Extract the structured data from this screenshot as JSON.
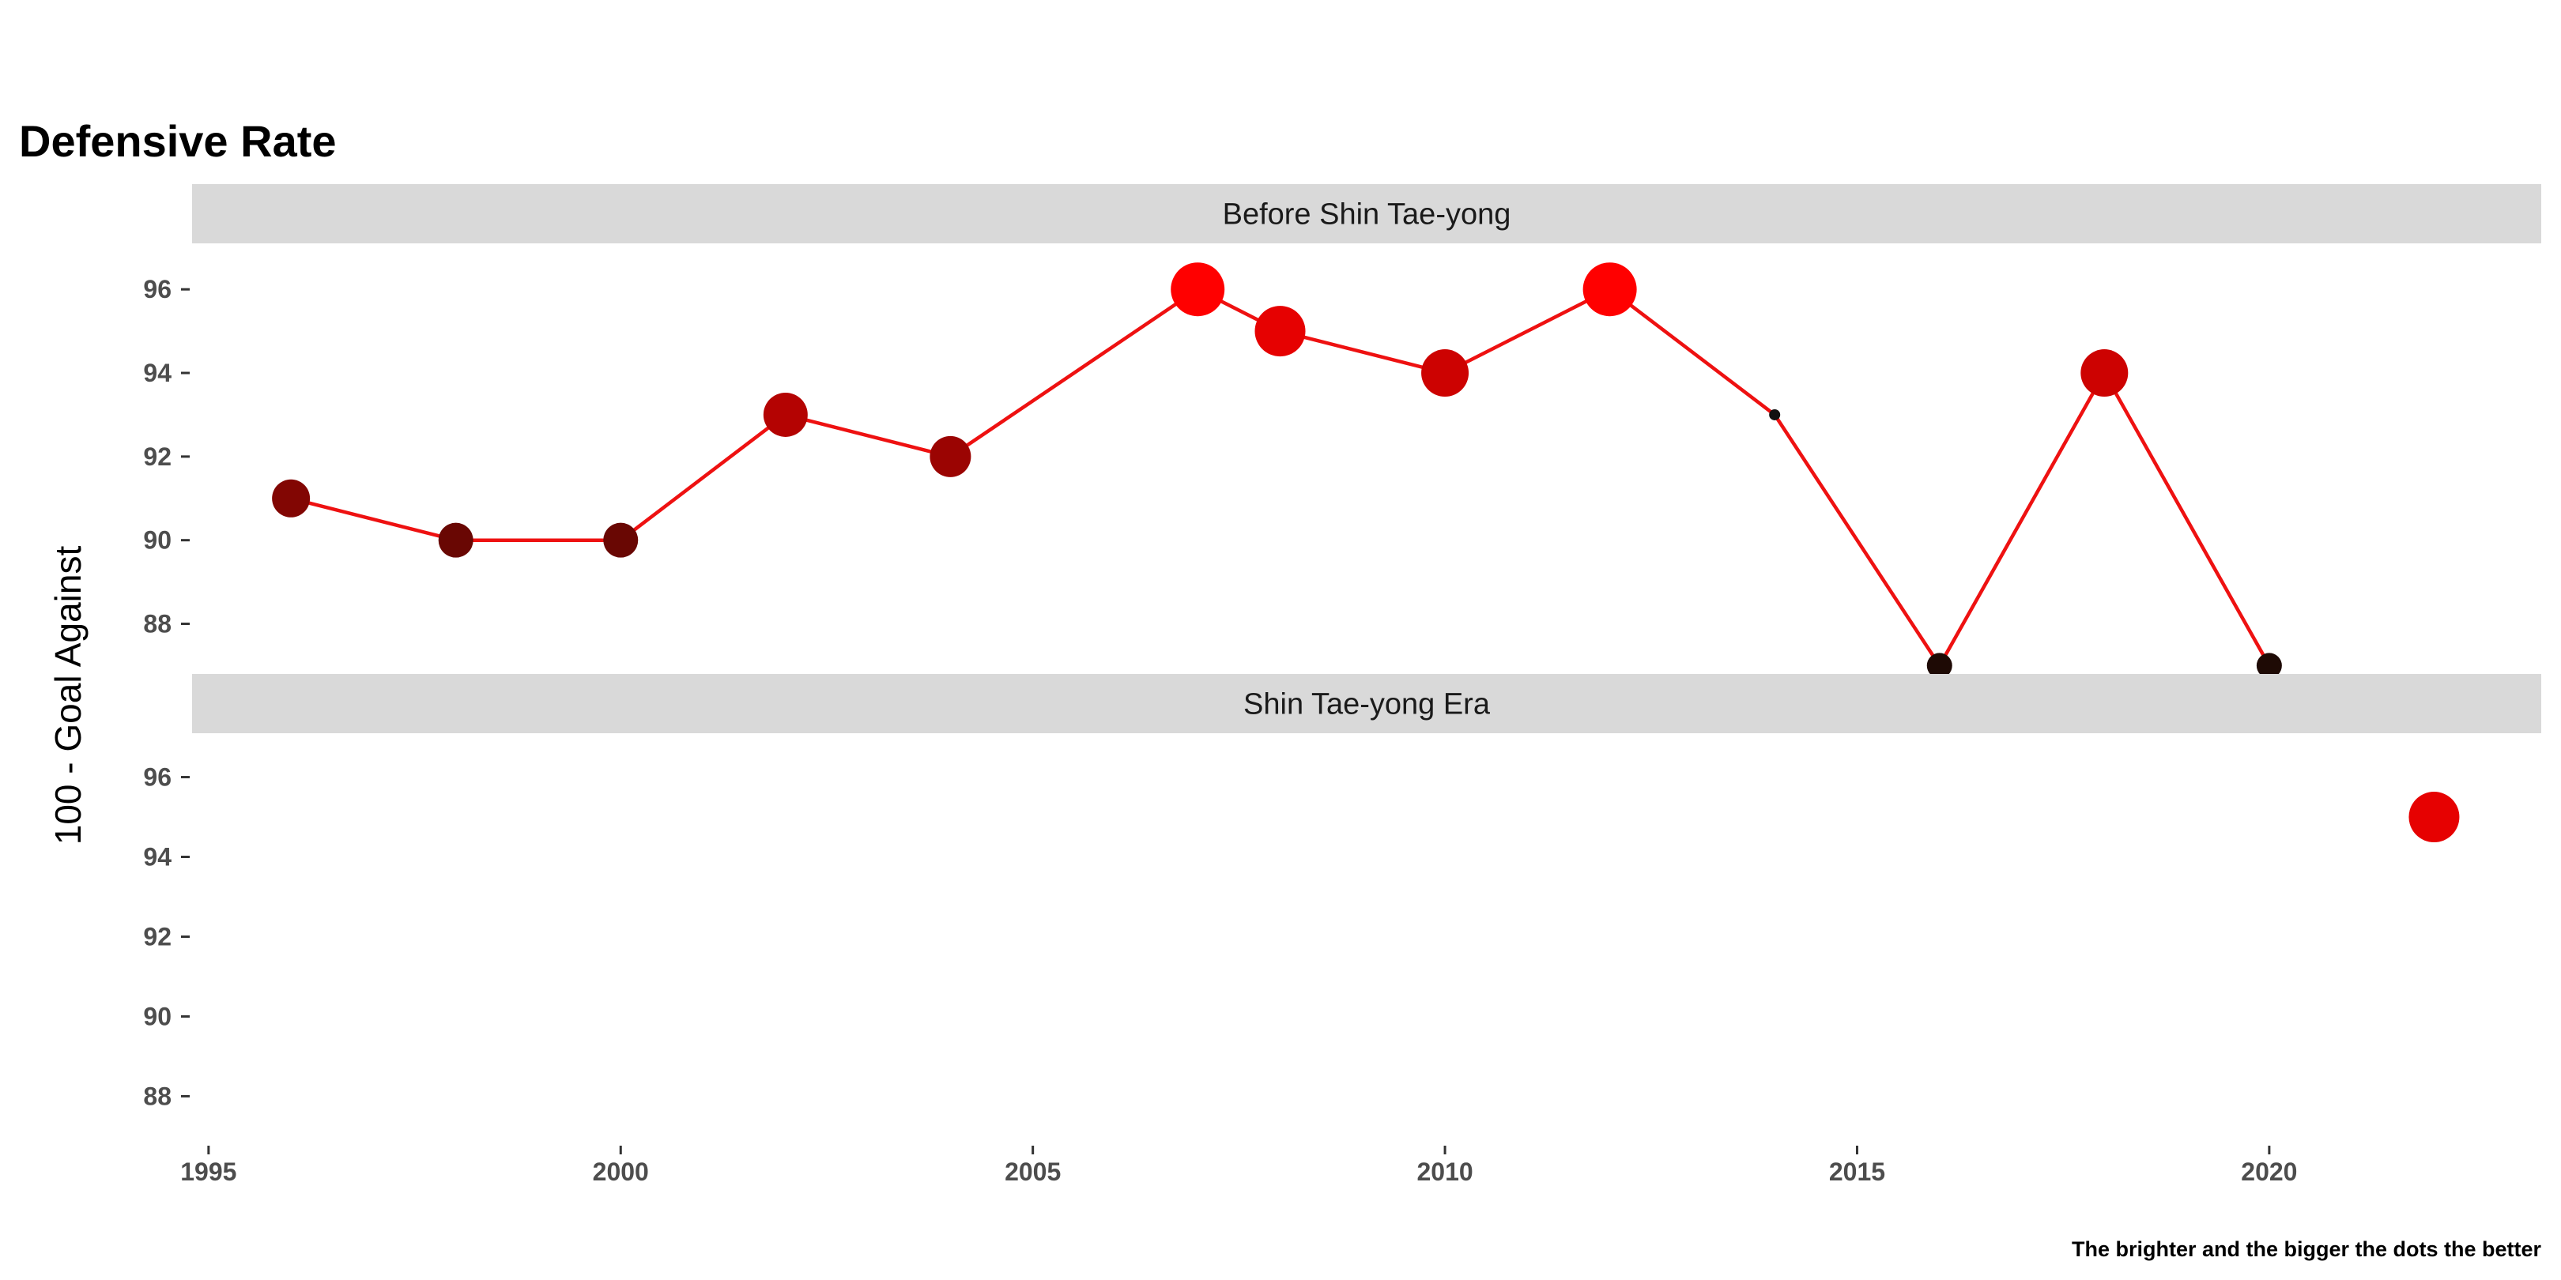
{
  "chart_data": {
    "type": "line",
    "title": "Defensive Rate",
    "xlabel": "",
    "ylabel": "100 - Goal Against",
    "caption": "The brighter and the bigger the dots the better",
    "xlim": [
      1994.8,
      2023.3
    ],
    "ylim": [
      86.8,
      97.1
    ],
    "x_ticks": [
      1995,
      2000,
      2005,
      2010,
      2015,
      2020
    ],
    "y_ticks": [
      88,
      90,
      92,
      94,
      96
    ],
    "grid": false,
    "legend": "none",
    "line_color": "#ee1111",
    "panels": [
      {
        "label": "Before Shin Tae-yong",
        "points": [
          {
            "x": 1996,
            "y": 91
          },
          {
            "x": 1998,
            "y": 90
          },
          {
            "x": 2000,
            "y": 90
          },
          {
            "x": 2002,
            "y": 93
          },
          {
            "x": 2004,
            "y": 92
          },
          {
            "x": 2007,
            "y": 96
          },
          {
            "x": 2008,
            "y": 95
          },
          {
            "x": 2010,
            "y": 94
          },
          {
            "x": 2012,
            "y": 96
          },
          {
            "x": 2014,
            "y": 93
          },
          {
            "x": 2016,
            "y": 87
          },
          {
            "x": 2018,
            "y": 94
          },
          {
            "x": 2020,
            "y": 87
          }
        ]
      },
      {
        "label": "Shin Tae-yong Era",
        "points": [
          {
            "x": 2022,
            "y": 95
          }
        ]
      }
    ]
  }
}
